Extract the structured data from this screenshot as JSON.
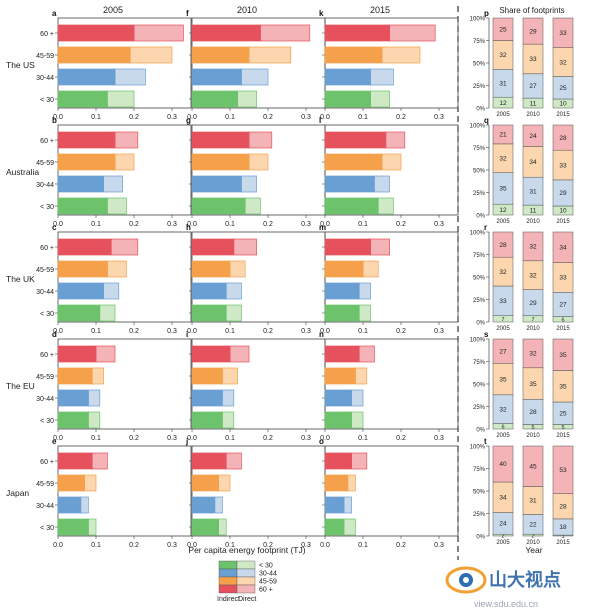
{
  "figure": {
    "years": [
      "2005",
      "2010",
      "2015"
    ],
    "x_axis_label": "Per capita energy footprint (TJ)",
    "x_ticks": [
      "0.0",
      "0.1",
      "0.2",
      "0.3"
    ],
    "share_title": "Share of footprints",
    "share_x_label": "Year",
    "share_y_ticks": [
      "0%",
      "25%",
      "50%",
      "75%",
      "100%"
    ],
    "legend": {
      "age_groups": [
        "< 30",
        "30-44",
        "45-59",
        "60 +"
      ],
      "indirect_label": "Indirect",
      "direct_label": "Direct"
    },
    "colors": {
      "lt30": {
        "indirect": "#6cc36c",
        "direct": "#cfe9c6"
      },
      "a3044": {
        "indirect": "#6a9fd3",
        "direct": "#c8d9ec"
      },
      "a4559": {
        "indirect": "#f5a04a",
        "direct": "#fbd6ae"
      },
      "a60": {
        "indirect": "#e5525e",
        "direct": "#f4b3b6"
      }
    },
    "watermark": {
      "text": "山大视点",
      "url": "view.sdu.edu.cn"
    }
  },
  "chart_data": [
    {
      "type": "bar",
      "orientation": "horizontal",
      "stacked": true,
      "region": "The US",
      "x_unit": "TJ",
      "xlim": [
        0,
        0.35
      ],
      "categories": [
        "60 +",
        "45-59",
        "30-44",
        "< 30"
      ],
      "panels": [
        {
          "label": "a",
          "year": "2005",
          "indirect": [
            0.2,
            0.19,
            0.15,
            0.13
          ],
          "total": [
            0.33,
            0.3,
            0.23,
            0.2
          ]
        },
        {
          "label": "f",
          "year": "2010",
          "indirect": [
            0.18,
            0.15,
            0.13,
            0.12
          ],
          "total": [
            0.31,
            0.26,
            0.2,
            0.17
          ]
        },
        {
          "label": "k",
          "year": "2015",
          "indirect": [
            0.17,
            0.15,
            0.12,
            0.12
          ],
          "total": [
            0.29,
            0.25,
            0.18,
            0.17
          ]
        }
      ],
      "share": {
        "label": "p",
        "years": [
          "2005",
          "2010",
          "2015"
        ],
        "series": [
          {
            "name": "< 30",
            "values": [
              12,
              11,
              10
            ]
          },
          {
            "name": "30-44",
            "values": [
              31,
              27,
              25
            ]
          },
          {
            "name": "45-59",
            "values": [
              32,
              33,
              32
            ]
          },
          {
            "name": "60 +",
            "values": [
              25,
              29,
              33
            ]
          }
        ]
      }
    },
    {
      "type": "bar",
      "orientation": "horizontal",
      "stacked": true,
      "region": "Australia",
      "x_unit": "TJ",
      "xlim": [
        0,
        0.35
      ],
      "categories": [
        "60 +",
        "45-59",
        "30-44",
        "< 30"
      ],
      "panels": [
        {
          "label": "b",
          "year": "2005",
          "indirect": [
            0.15,
            0.15,
            0.12,
            0.13
          ],
          "total": [
            0.21,
            0.2,
            0.17,
            0.18
          ]
        },
        {
          "label": "g",
          "year": "2010",
          "indirect": [
            0.15,
            0.15,
            0.13,
            0.14
          ],
          "total": [
            0.21,
            0.2,
            0.17,
            0.18
          ]
        },
        {
          "label": "l",
          "year": "2015",
          "indirect": [
            0.16,
            0.15,
            0.13,
            0.14
          ],
          "total": [
            0.21,
            0.2,
            0.17,
            0.18
          ]
        }
      ],
      "share": {
        "label": "q",
        "years": [
          "2005",
          "2010",
          "2015"
        ],
        "series": [
          {
            "name": "< 30",
            "values": [
              12,
              11,
              10
            ]
          },
          {
            "name": "30-44",
            "values": [
              35,
              31,
              29
            ]
          },
          {
            "name": "45-59",
            "values": [
              32,
              34,
              33
            ]
          },
          {
            "name": "60 +",
            "values": [
              21,
              24,
              28
            ]
          }
        ]
      }
    },
    {
      "type": "bar",
      "orientation": "horizontal",
      "stacked": true,
      "region": "The UK",
      "x_unit": "TJ",
      "xlim": [
        0,
        0.35
      ],
      "categories": [
        "60 +",
        "45-59",
        "30-44",
        "< 30"
      ],
      "panels": [
        {
          "label": "c",
          "year": "2005",
          "indirect": [
            0.14,
            0.13,
            0.12,
            0.11
          ],
          "total": [
            0.21,
            0.18,
            0.16,
            0.15
          ]
        },
        {
          "label": "h",
          "year": "2010",
          "indirect": [
            0.11,
            0.1,
            0.09,
            0.09
          ],
          "total": [
            0.17,
            0.14,
            0.13,
            0.13
          ]
        },
        {
          "label": "m",
          "year": "2015",
          "indirect": [
            0.12,
            0.1,
            0.09,
            0.09
          ],
          "total": [
            0.17,
            0.14,
            0.12,
            0.12
          ]
        }
      ],
      "share": {
        "label": "r",
        "years": [
          "2005",
          "2010",
          "2015"
        ],
        "series": [
          {
            "name": "< 30",
            "values": [
              7,
              7,
              6
            ]
          },
          {
            "name": "30-44",
            "values": [
              33,
              29,
              27
            ]
          },
          {
            "name": "45-59",
            "values": [
              32,
              32,
              33
            ]
          },
          {
            "name": "60 +",
            "values": [
              28,
              32,
              34
            ]
          }
        ]
      }
    },
    {
      "type": "bar",
      "orientation": "horizontal",
      "stacked": true,
      "region": "The EU",
      "x_unit": "TJ",
      "xlim": [
        0,
        0.35
      ],
      "categories": [
        "60 +",
        "45-59",
        "30-44",
        "< 30"
      ],
      "panels": [
        {
          "label": "d",
          "year": "2005",
          "indirect": [
            0.1,
            0.09,
            0.08,
            0.08
          ],
          "total": [
            0.15,
            0.12,
            0.11,
            0.11
          ]
        },
        {
          "label": "i",
          "year": "2010",
          "indirect": [
            0.1,
            0.08,
            0.08,
            0.08
          ],
          "total": [
            0.15,
            0.12,
            0.11,
            0.11
          ]
        },
        {
          "label": "n",
          "year": "2015",
          "indirect": [
            0.09,
            0.08,
            0.07,
            0.07
          ],
          "total": [
            0.13,
            0.11,
            0.1,
            0.1
          ]
        }
      ],
      "share": {
        "label": "s",
        "years": [
          "2005",
          "2010",
          "2015"
        ],
        "series": [
          {
            "name": "< 30",
            "values": [
              6,
              5,
              5
            ]
          },
          {
            "name": "30-44",
            "values": [
              32,
              28,
              25
            ]
          },
          {
            "name": "45-59",
            "values": [
              35,
              35,
              35
            ]
          },
          {
            "name": "60 +",
            "values": [
              27,
              32,
              35
            ]
          }
        ]
      }
    },
    {
      "type": "bar",
      "orientation": "horizontal",
      "stacked": true,
      "region": "Japan",
      "x_unit": "TJ",
      "xlim": [
        0,
        0.35
      ],
      "categories": [
        "60 +",
        "45-59",
        "30-44",
        "< 30"
      ],
      "panels": [
        {
          "label": "e",
          "year": "2005",
          "indirect": [
            0.09,
            0.07,
            0.06,
            0.08
          ],
          "total": [
            0.13,
            0.1,
            0.08,
            0.1
          ]
        },
        {
          "label": "j",
          "year": "2010",
          "indirect": [
            0.09,
            0.07,
            0.06,
            0.07
          ],
          "total": [
            0.13,
            0.1,
            0.08,
            0.09
          ]
        },
        {
          "label": "o",
          "year": "2015",
          "indirect": [
            0.07,
            0.06,
            0.05,
            0.05
          ],
          "total": [
            0.11,
            0.08,
            0.07,
            0.08
          ]
        }
      ],
      "share": {
        "label": "t",
        "years": [
          "2005",
          "2010",
          "2015"
        ],
        "series": [
          {
            "name": "< 30",
            "values": [
              2,
              2,
              1
            ]
          },
          {
            "name": "30-44",
            "values": [
              24,
              22,
              18
            ]
          },
          {
            "name": "45-59",
            "values": [
              34,
              31,
              28
            ]
          },
          {
            "name": "60 +",
            "values": [
              40,
              45,
              53
            ]
          }
        ]
      }
    }
  ]
}
